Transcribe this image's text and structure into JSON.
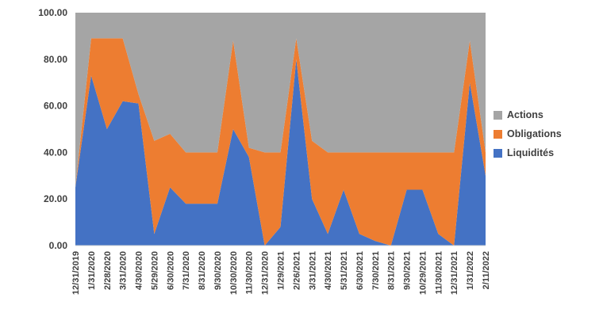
{
  "chart_data": {
    "type": "area",
    "stacked": true,
    "percent_stacked": true,
    "title": "",
    "xlabel": "",
    "ylabel": "",
    "grid": false,
    "ylim": [
      0,
      100
    ],
    "x": [
      "12/31/2019",
      "1/31/2020",
      "2/28/2020",
      "3/31/2020",
      "4/30/2020",
      "5/29/2020",
      "6/30/2020",
      "7/31/2020",
      "8/31/2020",
      "9/30/2020",
      "10/30/2020",
      "11/30/2020",
      "12/31/2020",
      "1/29/2021",
      "2/26/2021",
      "3/31/2021",
      "4/30/2021",
      "5/31/2021",
      "6/30/2021",
      "7/30/2021",
      "8/31/2021",
      "9/30/2021",
      "10/29/2021",
      "11/30/2021",
      "12/31/2021",
      "1/31/2022",
      "2/11/2022"
    ],
    "series": [
      {
        "id": "liquidites",
        "name": "Liquidités",
        "color": "#4472c4",
        "values": [
          25,
          73,
          50,
          62,
          61,
          5,
          25,
          18,
          18,
          18,
          50,
          38,
          0,
          8,
          80,
          20,
          5,
          24,
          5,
          2,
          0,
          24,
          24,
          5,
          0,
          70,
          30
        ]
      },
      {
        "id": "obligations",
        "name": "Obligations",
        "color": "#ed7d31",
        "values": [
          0,
          16,
          39,
          27,
          4,
          40,
          23,
          22,
          22,
          22,
          38,
          4,
          40,
          32,
          9,
          25,
          35,
          16,
          35,
          38,
          40,
          16,
          16,
          35,
          40,
          18,
          10
        ]
      },
      {
        "id": "actions",
        "name": "Actions",
        "color": "#a5a5a5",
        "values": [
          75,
          11,
          11,
          11,
          35,
          55,
          52,
          60,
          60,
          60,
          12,
          58,
          60,
          60,
          11,
          55,
          60,
          60,
          60,
          60,
          60,
          60,
          60,
          60,
          60,
          12,
          60
        ]
      }
    ],
    "yticks": [
      {
        "value": 0,
        "label": "0.00"
      },
      {
        "value": 20,
        "label": "20.00"
      },
      {
        "value": 40,
        "label": "40.00"
      },
      {
        "value": 60,
        "label": "60.00"
      },
      {
        "value": 80,
        "label": "80.00"
      },
      {
        "value": 100,
        "label": "100.00"
      }
    ],
    "legend": {
      "position": "right",
      "items": [
        {
          "label": "Actions",
          "color": "#a5a5a5"
        },
        {
          "label": "Obligations",
          "color": "#ed7d31"
        },
        {
          "label": "Liquidités",
          "color": "#4472c4"
        }
      ]
    }
  }
}
